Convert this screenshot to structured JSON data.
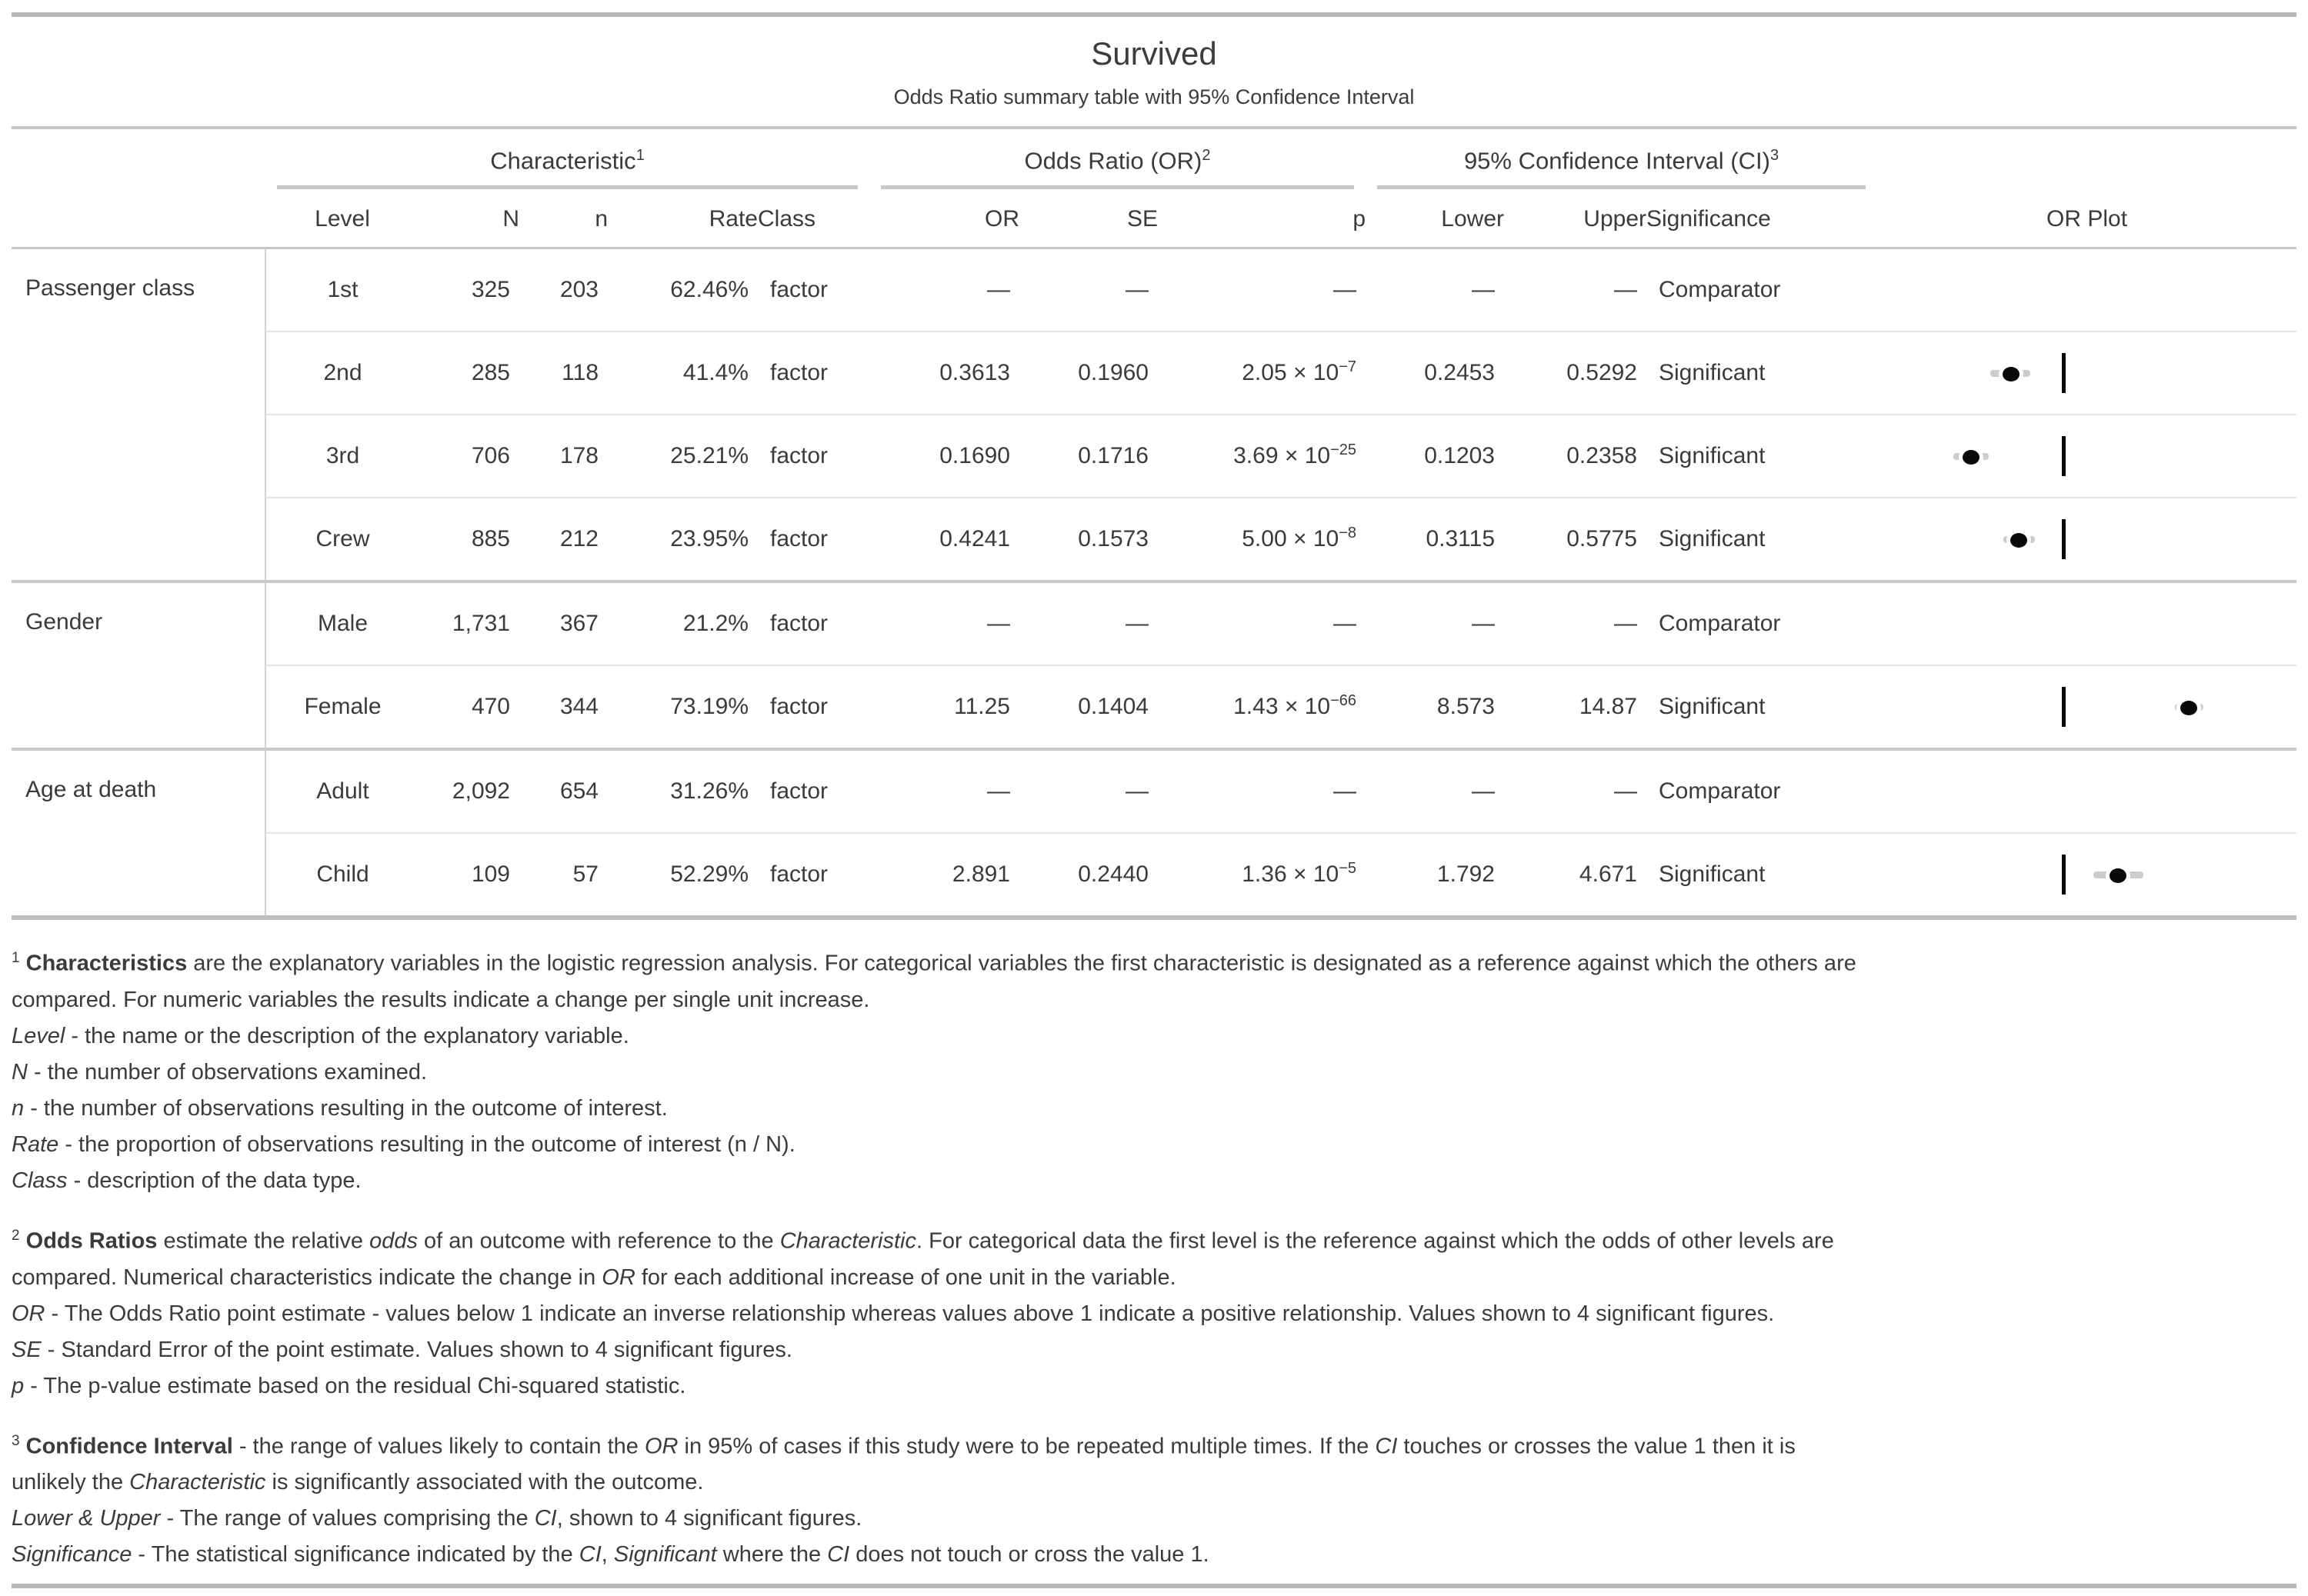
{
  "title": "Survived",
  "subtitle": "Odds Ratio summary table with 95% Confidence Interval",
  "colors": {
    "text": "#3b3b3b",
    "rule_major": "#b9b9b9",
    "rule_group": "#c9c9c9",
    "rule_light": "#e3e3e3",
    "ci_bar": "#cccccc",
    "marker": "#000000"
  },
  "table": {
    "spanners": [
      {
        "label": "Characteristic",
        "sup": "1"
      },
      {
        "label": "Odds Ratio (OR)",
        "sup": "2"
      },
      {
        "label": "95% Confidence Interval (CI)",
        "sup": "3"
      }
    ],
    "columns": [
      "Level",
      "N",
      "n",
      "Rate",
      "Class",
      "OR",
      "SE",
      "p",
      "Lower",
      "Upper",
      "Significance",
      "OR Plot"
    ]
  },
  "chart_data": {
    "type": "table",
    "title": "Survived",
    "subtitle": "Odds Ratio summary table with 95% Confidence Interval",
    "forest_plot": {
      "scale": "log10",
      "reference_value": 1,
      "marker": "point-estimate-dot-with-ci-bar",
      "ci_bar_color": "#cccccc",
      "marker_color": "#000000"
    },
    "groups": [
      {
        "label": "Passenger class",
        "rows": [
          {
            "level": "1st",
            "N": "325",
            "n": "203",
            "rate": "62.46%",
            "class": "factor",
            "or": "—",
            "se": "—",
            "p_base": "—",
            "p_exp": "",
            "lower": "—",
            "upper": "—",
            "significance": "Comparator"
          },
          {
            "level": "2nd",
            "N": "285",
            "n": "118",
            "rate": "41.4%",
            "class": "factor",
            "or": "0.3613",
            "se": "0.1960",
            "p_base": "2.05 × 10",
            "p_exp": "−7",
            "lower": "0.2453",
            "upper": "0.5292",
            "significance": "Significant"
          },
          {
            "level": "3rd",
            "N": "706",
            "n": "178",
            "rate": "25.21%",
            "class": "factor",
            "or": "0.1690",
            "se": "0.1716",
            "p_base": "3.69 × 10",
            "p_exp": "−25",
            "lower": "0.1203",
            "upper": "0.2358",
            "significance": "Significant"
          },
          {
            "level": "Crew",
            "N": "885",
            "n": "212",
            "rate": "23.95%",
            "class": "factor",
            "or": "0.4241",
            "se": "0.1573",
            "p_base": "5.00 × 10",
            "p_exp": "−8",
            "lower": "0.3115",
            "upper": "0.5775",
            "significance": "Significant"
          }
        ]
      },
      {
        "label": "Gender",
        "rows": [
          {
            "level": "Male",
            "N": "1,731",
            "n": "367",
            "rate": "21.2%",
            "class": "factor",
            "or": "—",
            "se": "—",
            "p_base": "—",
            "p_exp": "",
            "lower": "—",
            "upper": "—",
            "significance": "Comparator"
          },
          {
            "level": "Female",
            "N": "470",
            "n": "344",
            "rate": "73.19%",
            "class": "factor",
            "or": "11.25",
            "se": "0.1404",
            "p_base": "1.43 × 10",
            "p_exp": "−66",
            "lower": "8.573",
            "upper": "14.87",
            "significance": "Significant"
          }
        ]
      },
      {
        "label": "Age at death",
        "rows": [
          {
            "level": "Adult",
            "N": "2,092",
            "n": "654",
            "rate": "31.26%",
            "class": "factor",
            "or": "—",
            "se": "—",
            "p_base": "—",
            "p_exp": "",
            "lower": "—",
            "upper": "—",
            "significance": "Comparator"
          },
          {
            "level": "Child",
            "N": "109",
            "n": "57",
            "rate": "52.29%",
            "class": "factor",
            "or": "2.891",
            "se": "0.2440",
            "p_base": "1.36 × 10",
            "p_exp": "−5",
            "lower": "1.792",
            "upper": "4.671",
            "significance": "Significant"
          }
        ]
      }
    ]
  },
  "footnotes": [
    {
      "lines": [
        [
          {
            "t": "1",
            "sup": true
          },
          {
            "t": " "
          },
          {
            "t": "Characteristics",
            "b": true
          },
          {
            "t": " are the explanatory variables in the logistic regression analysis. For categorical variables the first characteristic is designated as a reference against which the others are"
          }
        ],
        [
          {
            "t": "compared. For numeric variables the results indicate a change per single unit increase."
          }
        ],
        [
          {
            "t": "Level",
            "i": true
          },
          {
            "t": " - the name or the description of the explanatory variable."
          }
        ],
        [
          {
            "t": "N",
            "i": true
          },
          {
            "t": " - the number of observations examined."
          }
        ],
        [
          {
            "t": "n",
            "i": true
          },
          {
            "t": " - the number of observations resulting in the outcome of interest."
          }
        ],
        [
          {
            "t": "Rate",
            "i": true
          },
          {
            "t": " - the proportion of observations resulting in the outcome of interest (n / N)."
          }
        ],
        [
          {
            "t": "Class",
            "i": true
          },
          {
            "t": " - description of the data type."
          }
        ]
      ]
    },
    {
      "lines": [
        [
          {
            "t": "2",
            "sup": true
          },
          {
            "t": " "
          },
          {
            "t": "Odds Ratios",
            "b": true
          },
          {
            "t": " estimate the relative "
          },
          {
            "t": "odds",
            "i": true
          },
          {
            "t": " of an outcome with reference to the "
          },
          {
            "t": "Characteristic",
            "i": true
          },
          {
            "t": ". For categorical data the first level is the reference against which the odds of other levels are"
          }
        ],
        [
          {
            "t": "compared. Numerical characteristics indicate the change in "
          },
          {
            "t": "OR",
            "i": true
          },
          {
            "t": " for each additional increase of one unit in the variable."
          }
        ],
        [
          {
            "t": "OR",
            "i": true
          },
          {
            "t": " - The Odds Ratio point estimate - values below 1 indicate an inverse relationship whereas values above 1 indicate a positive relationship. Values shown to 4 significant figures."
          }
        ],
        [
          {
            "t": "SE",
            "i": true
          },
          {
            "t": " - Standard Error of the point estimate. Values shown to 4 significant figures."
          }
        ],
        [
          {
            "t": "p",
            "i": true
          },
          {
            "t": " - The p-value estimate based on the residual Chi-squared statistic."
          }
        ]
      ]
    },
    {
      "lines": [
        [
          {
            "t": "3",
            "sup": true
          },
          {
            "t": " "
          },
          {
            "t": "Confidence Interval",
            "b": true
          },
          {
            "t": " - the range of values likely to contain the "
          },
          {
            "t": "OR",
            "i": true
          },
          {
            "t": " in 95% of cases if this study were to be repeated multiple times. If the "
          },
          {
            "t": "CI",
            "i": true
          },
          {
            "t": " touches or crosses the value 1 then it is"
          }
        ],
        [
          {
            "t": "unlikely the "
          },
          {
            "t": "Characteristic",
            "i": true
          },
          {
            "t": " is significantly associated with the outcome."
          }
        ],
        [
          {
            "t": "Lower & Upper",
            "i": true
          },
          {
            "t": " - The range of values comprising the "
          },
          {
            "t": "CI",
            "i": true
          },
          {
            "t": ", shown to 4 significant figures."
          }
        ],
        [
          {
            "t": "Significance",
            "i": true
          },
          {
            "t": " - The statistical significance indicated by the "
          },
          {
            "t": "CI",
            "i": true
          },
          {
            "t": ", "
          },
          {
            "t": "Significant",
            "i": true
          },
          {
            "t": " where the "
          },
          {
            "t": "CI",
            "i": true
          },
          {
            "t": " does not touch or cross the value 1."
          }
        ]
      ]
    }
  ]
}
